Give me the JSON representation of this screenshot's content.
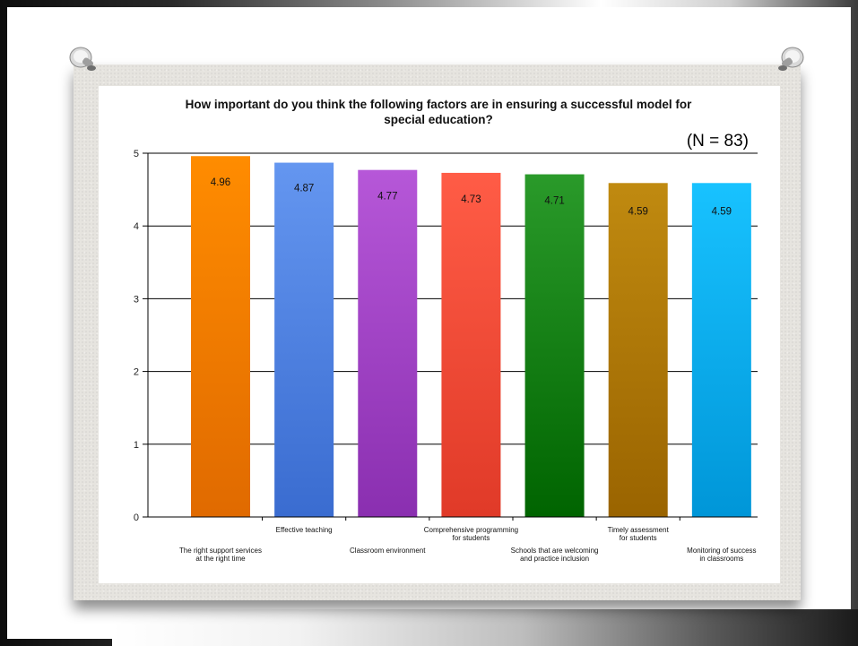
{
  "chart_data": {
    "type": "bar",
    "title_lines": [
      "How important do you think the following factors are in ensuring a successful model for",
      "special education?"
    ],
    "annotation": "(N = 83)",
    "categories": [
      [
        "The right support services",
        "at the right time"
      ],
      [
        "Effective teaching"
      ],
      [
        "Classroom environment"
      ],
      [
        "Comprehensive programming",
        "for students"
      ],
      [
        "Schools that are welcoming",
        "and practice inclusion"
      ],
      [
        "Timely assessment",
        "for students"
      ],
      [
        "Monitoring of success",
        "in classrooms"
      ]
    ],
    "label_row": [
      "low",
      "high",
      "low",
      "high",
      "low",
      "high",
      "low"
    ],
    "values": [
      4.96,
      4.87,
      4.77,
      4.73,
      4.71,
      4.59,
      4.59
    ],
    "value_labels": [
      "4.96",
      "4.87",
      "4.77",
      "4.73",
      "4.71",
      "4.59",
      "4.59"
    ],
    "colors": [
      [
        "#ff8c00",
        "#e06a00"
      ],
      [
        "#6496f0",
        "#3a6cd0"
      ],
      [
        "#b657d8",
        "#8a2fb0"
      ],
      [
        "#ff5c46",
        "#e03a28"
      ],
      [
        "#2a9a2a",
        "#006400"
      ],
      [
        "#c08a10",
        "#9a6400"
      ],
      [
        "#18c2ff",
        "#0096d8"
      ]
    ],
    "yticks": [
      "0",
      "1",
      "2",
      "3",
      "4",
      "5"
    ],
    "ylim": [
      0,
      5
    ],
    "grid": true
  }
}
